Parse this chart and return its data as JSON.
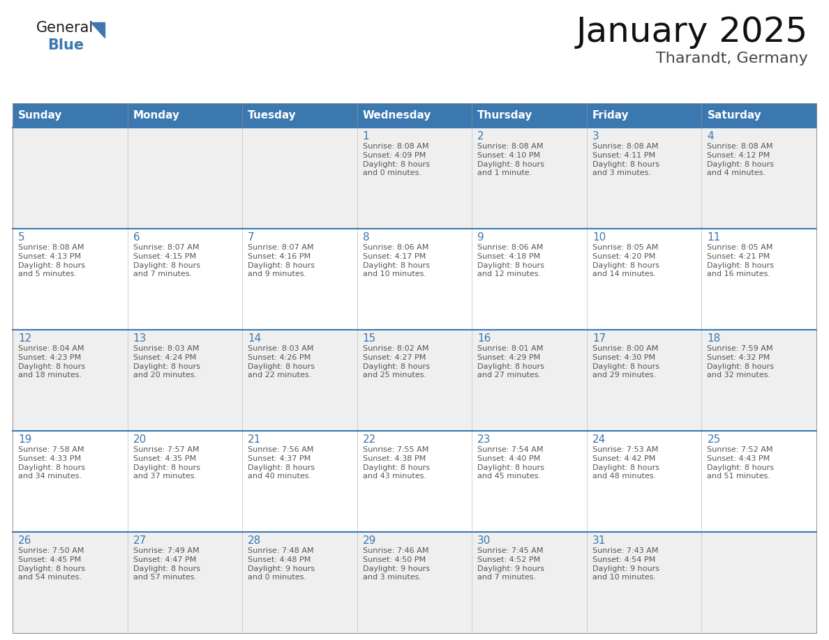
{
  "title": "January 2025",
  "subtitle": "Tharandt, Germany",
  "header_bg": "#3B78B0",
  "header_text_color": "#FFFFFF",
  "cell_bg_week0": "#EFEFEF",
  "cell_bg_week1": "#FFFFFF",
  "cell_bg_week2": "#EFEFEF",
  "cell_bg_week3": "#FFFFFF",
  "cell_bg_week4": "#EFEFEF",
  "day_number_color": "#3B78B0",
  "info_text_color": "#555555",
  "border_color": "#AAAAAA",
  "row_divider_color": "#3B78B0",
  "days_of_week": [
    "Sunday",
    "Monday",
    "Tuesday",
    "Wednesday",
    "Thursday",
    "Friday",
    "Saturday"
  ],
  "weeks": [
    [
      {
        "day": "",
        "info": ""
      },
      {
        "day": "",
        "info": ""
      },
      {
        "day": "",
        "info": ""
      },
      {
        "day": "1",
        "info": "Sunrise: 8:08 AM\nSunset: 4:09 PM\nDaylight: 8 hours\nand 0 minutes."
      },
      {
        "day": "2",
        "info": "Sunrise: 8:08 AM\nSunset: 4:10 PM\nDaylight: 8 hours\nand 1 minute."
      },
      {
        "day": "3",
        "info": "Sunrise: 8:08 AM\nSunset: 4:11 PM\nDaylight: 8 hours\nand 3 minutes."
      },
      {
        "day": "4",
        "info": "Sunrise: 8:08 AM\nSunset: 4:12 PM\nDaylight: 8 hours\nand 4 minutes."
      }
    ],
    [
      {
        "day": "5",
        "info": "Sunrise: 8:08 AM\nSunset: 4:13 PM\nDaylight: 8 hours\nand 5 minutes."
      },
      {
        "day": "6",
        "info": "Sunrise: 8:07 AM\nSunset: 4:15 PM\nDaylight: 8 hours\nand 7 minutes."
      },
      {
        "day": "7",
        "info": "Sunrise: 8:07 AM\nSunset: 4:16 PM\nDaylight: 8 hours\nand 9 minutes."
      },
      {
        "day": "8",
        "info": "Sunrise: 8:06 AM\nSunset: 4:17 PM\nDaylight: 8 hours\nand 10 minutes."
      },
      {
        "day": "9",
        "info": "Sunrise: 8:06 AM\nSunset: 4:18 PM\nDaylight: 8 hours\nand 12 minutes."
      },
      {
        "day": "10",
        "info": "Sunrise: 8:05 AM\nSunset: 4:20 PM\nDaylight: 8 hours\nand 14 minutes."
      },
      {
        "day": "11",
        "info": "Sunrise: 8:05 AM\nSunset: 4:21 PM\nDaylight: 8 hours\nand 16 minutes."
      }
    ],
    [
      {
        "day": "12",
        "info": "Sunrise: 8:04 AM\nSunset: 4:23 PM\nDaylight: 8 hours\nand 18 minutes."
      },
      {
        "day": "13",
        "info": "Sunrise: 8:03 AM\nSunset: 4:24 PM\nDaylight: 8 hours\nand 20 minutes."
      },
      {
        "day": "14",
        "info": "Sunrise: 8:03 AM\nSunset: 4:26 PM\nDaylight: 8 hours\nand 22 minutes."
      },
      {
        "day": "15",
        "info": "Sunrise: 8:02 AM\nSunset: 4:27 PM\nDaylight: 8 hours\nand 25 minutes."
      },
      {
        "day": "16",
        "info": "Sunrise: 8:01 AM\nSunset: 4:29 PM\nDaylight: 8 hours\nand 27 minutes."
      },
      {
        "day": "17",
        "info": "Sunrise: 8:00 AM\nSunset: 4:30 PM\nDaylight: 8 hours\nand 29 minutes."
      },
      {
        "day": "18",
        "info": "Sunrise: 7:59 AM\nSunset: 4:32 PM\nDaylight: 8 hours\nand 32 minutes."
      }
    ],
    [
      {
        "day": "19",
        "info": "Sunrise: 7:58 AM\nSunset: 4:33 PM\nDaylight: 8 hours\nand 34 minutes."
      },
      {
        "day": "20",
        "info": "Sunrise: 7:57 AM\nSunset: 4:35 PM\nDaylight: 8 hours\nand 37 minutes."
      },
      {
        "day": "21",
        "info": "Sunrise: 7:56 AM\nSunset: 4:37 PM\nDaylight: 8 hours\nand 40 minutes."
      },
      {
        "day": "22",
        "info": "Sunrise: 7:55 AM\nSunset: 4:38 PM\nDaylight: 8 hours\nand 43 minutes."
      },
      {
        "day": "23",
        "info": "Sunrise: 7:54 AM\nSunset: 4:40 PM\nDaylight: 8 hours\nand 45 minutes."
      },
      {
        "day": "24",
        "info": "Sunrise: 7:53 AM\nSunset: 4:42 PM\nDaylight: 8 hours\nand 48 minutes."
      },
      {
        "day": "25",
        "info": "Sunrise: 7:52 AM\nSunset: 4:43 PM\nDaylight: 8 hours\nand 51 minutes."
      }
    ],
    [
      {
        "day": "26",
        "info": "Sunrise: 7:50 AM\nSunset: 4:45 PM\nDaylight: 8 hours\nand 54 minutes."
      },
      {
        "day": "27",
        "info": "Sunrise: 7:49 AM\nSunset: 4:47 PM\nDaylight: 8 hours\nand 57 minutes."
      },
      {
        "day": "28",
        "info": "Sunrise: 7:48 AM\nSunset: 4:48 PM\nDaylight: 9 hours\nand 0 minutes."
      },
      {
        "day": "29",
        "info": "Sunrise: 7:46 AM\nSunset: 4:50 PM\nDaylight: 9 hours\nand 3 minutes."
      },
      {
        "day": "30",
        "info": "Sunrise: 7:45 AM\nSunset: 4:52 PM\nDaylight: 9 hours\nand 7 minutes."
      },
      {
        "day": "31",
        "info": "Sunrise: 7:43 AM\nSunset: 4:54 PM\nDaylight: 9 hours\nand 10 minutes."
      },
      {
        "day": "",
        "info": ""
      }
    ]
  ],
  "logo_text_general": "General",
  "logo_text_blue": "Blue",
  "logo_color_general": "#1a1a1a",
  "logo_color_blue": "#3B78B0",
  "logo_triangle_color": "#3B78B0",
  "title_fontsize": 36,
  "subtitle_fontsize": 16,
  "header_fontsize": 11,
  "day_num_fontsize": 11,
  "info_fontsize": 8
}
